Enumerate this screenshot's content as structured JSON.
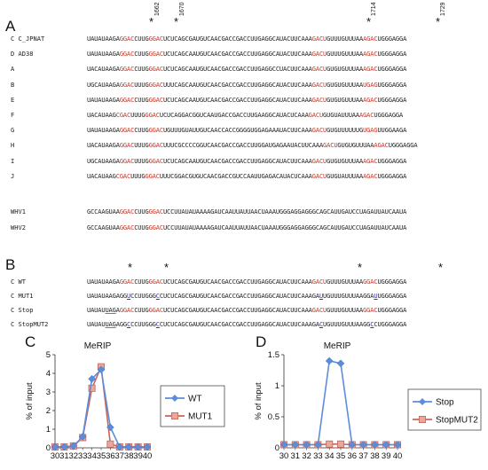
{
  "panelA": {
    "letter": "A",
    "positions": [
      "1662",
      "1670",
      "1714",
      "1729"
    ],
    "rows": [
      {
        "label": "C C_JPNAT",
        "parts": [
          [
            "UAUAUAAGA",
            ""
          ],
          [
            "GGAC",
            "red"
          ],
          [
            "CUUG",
            ""
          ],
          [
            "GGAC",
            "red"
          ],
          [
            "UCUCAGCGAUGUCAACGACCGACCUUGAGGCAUACUUCAAA",
            ""
          ],
          [
            "GACU",
            "red"
          ],
          [
            "GUUUGUUUAA",
            ""
          ],
          [
            "AGAC",
            "red"
          ],
          [
            "UGGGAGGA",
            ""
          ]
        ]
      },
      {
        "label": "D AD38",
        "parts": [
          [
            "UAUAUAAGA",
            ""
          ],
          [
            "GGAC",
            "red"
          ],
          [
            "CUUG",
            ""
          ],
          [
            "GGAC",
            "red"
          ],
          [
            "UCUCAGCAAUGUCAACGACCGACCUUGAGGCAUACUUCAAA",
            ""
          ],
          [
            "GACU",
            "red"
          ],
          [
            "GUUUGUUUAA",
            ""
          ],
          [
            "AGAC",
            "red"
          ],
          [
            "UGGGAGGA",
            ""
          ]
        ]
      },
      {
        "label": "A",
        "parts": [
          [
            "UACAUAAGA",
            ""
          ],
          [
            "GGAC",
            "red"
          ],
          [
            "CUUG",
            ""
          ],
          [
            "GGAC",
            "red"
          ],
          [
            "UCUCAGCAAUGUCAACGACCGACCUUGAGGCCUACUUCAAA",
            ""
          ],
          [
            "GACU",
            "red"
          ],
          [
            "GUGUGUUUAA",
            ""
          ],
          [
            "AGAC",
            "red"
          ],
          [
            "UGGGAGGA",
            ""
          ]
        ]
      },
      {
        "label": "B",
        "parts": [
          [
            "UGCAUAAGA",
            ""
          ],
          [
            "GGAC",
            "red"
          ],
          [
            "UUUG",
            ""
          ],
          [
            "GGAC",
            "red"
          ],
          [
            "UUUCAGCAAUGUCAACGACCGACCUUGAGGCAUACUUCAAA",
            ""
          ],
          [
            "GACU",
            "red"
          ],
          [
            "GUGUGUUUAA",
            ""
          ],
          [
            "UGAG",
            "red"
          ],
          [
            "UGGGAGGA",
            ""
          ]
        ]
      },
      {
        "label": "E",
        "parts": [
          [
            "UAUAUAAGA",
            ""
          ],
          [
            "GGAC",
            "red"
          ],
          [
            "CUUG",
            ""
          ],
          [
            "GGAC",
            "red"
          ],
          [
            "UCUCAGCAAUGUCAACGACCGACCUUGAGGCAUACUUCAAA",
            ""
          ],
          [
            "GACU",
            "red"
          ],
          [
            "GUGUGUUUAA",
            ""
          ],
          [
            "AGAC",
            "red"
          ],
          [
            "UGGGAGGA",
            ""
          ]
        ]
      },
      {
        "label": "F",
        "parts": [
          [
            "UACAUAAG",
            ""
          ],
          [
            "CGAC",
            "red"
          ],
          [
            "UUUG",
            ""
          ],
          [
            "GGAC",
            "red"
          ],
          [
            "UCUCAGGACGGUCAAUGACCGACCUUGAAGGCAUACUCAAA",
            ""
          ],
          [
            "GACU",
            "red"
          ],
          [
            "GUGUAUUUAA",
            ""
          ],
          [
            "AGAC",
            "red"
          ],
          [
            "UGGGAGGA",
            ""
          ]
        ]
      },
      {
        "label": "G",
        "parts": [
          [
            "UAUAUAAGA",
            ""
          ],
          [
            "GGAC",
            "red"
          ],
          [
            "CUUG",
            ""
          ],
          [
            "GGAC",
            "red"
          ],
          [
            "UGUUUGUAUUGUCAACCACCGGGGUGGAGAAAUACUUCAAA",
            ""
          ],
          [
            "GACU",
            "red"
          ],
          [
            "GUGUUUUUUG",
            ""
          ],
          [
            "UGAG",
            "red"
          ],
          [
            "UUGGAAGA",
            ""
          ]
        ]
      },
      {
        "label": "H",
        "parts": [
          [
            "UACAUAAGA",
            ""
          ],
          [
            "GGAC",
            "red"
          ],
          [
            "UUUG",
            ""
          ],
          [
            "GGAC",
            "red"
          ],
          [
            "UUUCGCCCCGGUCAACGACCGACCUUGGAUGAGAAUACUUCAAA",
            ""
          ],
          [
            "GACU",
            "red"
          ],
          [
            "GUGUGUUUAA",
            ""
          ],
          [
            "AGAC",
            "red"
          ],
          [
            "UGGGAGGA",
            ""
          ]
        ]
      },
      {
        "label": "I",
        "parts": [
          [
            "UGCAUAAGA",
            ""
          ],
          [
            "GGAC",
            "red"
          ],
          [
            "UUUG",
            ""
          ],
          [
            "GGAC",
            "red"
          ],
          [
            "UCUCAGCAAUGUCAACGACCGACCUUGAGGCAUACUUCAAA",
            ""
          ],
          [
            "GACU",
            "red"
          ],
          [
            "GUGUGUUUAA",
            ""
          ],
          [
            "AGAC",
            "red"
          ],
          [
            "UGGGAGGA",
            ""
          ]
        ]
      },
      {
        "label": "J",
        "parts": [
          [
            "UACAUAAG",
            ""
          ],
          [
            "CGAC",
            "red"
          ],
          [
            "UUUG",
            ""
          ],
          [
            "GGAC",
            "red"
          ],
          [
            "UUUCGGACGUGUCAACGACCGUCCAAUUGAGACAUACUCAAA",
            ""
          ],
          [
            "GACU",
            "red"
          ],
          [
            "GUGUAUUUAA",
            ""
          ],
          [
            "AGAC",
            "red"
          ],
          [
            "UGGGAGGA",
            ""
          ]
        ]
      }
    ],
    "whv": [
      {
        "label": "WHV1",
        "parts": [
          [
            "GCCAAGUAA",
            ""
          ],
          [
            "GGAC",
            "red"
          ],
          [
            "CUUG",
            ""
          ],
          [
            "GGAC",
            "red"
          ],
          [
            "UCCUUAUAUAAAAGAUCAAUUAUUAACUAAAUGGGAGGAGGGCAGCAUUGAUCCUAGAUUAUCAAUA",
            ""
          ]
        ]
      },
      {
        "label": "WHV2",
        "parts": [
          [
            "GCCAAGUAA",
            ""
          ],
          [
            "GGAC",
            "red"
          ],
          [
            "CUUG",
            ""
          ],
          [
            "GGAC",
            "red"
          ],
          [
            "UCCUUAUAUAAAAGAUCAAUUAUUAACUAAAUGGGAGGAGGGCAGCAUUGAUCCUAGAUUAUCAAUA",
            ""
          ]
        ]
      }
    ]
  },
  "panelB": {
    "letter": "B",
    "rows": [
      {
        "label": "C WT",
        "parts": [
          [
            "UAUAUAAGA",
            ""
          ],
          [
            "GGAC",
            "red"
          ],
          [
            "CUUG",
            ""
          ],
          [
            "GGAC",
            "red"
          ],
          [
            "UCUCAGCGAUGUCAACGACCGACCUUGAGGCAUACUUCAAA",
            ""
          ],
          [
            "GACU",
            "red"
          ],
          [
            "GUUUGUUUAA",
            ""
          ],
          [
            "GGAC",
            "red"
          ],
          [
            "UGGGAGGA",
            ""
          ]
        ]
      },
      {
        "label": "C MUT1",
        "parts": [
          [
            "UAUAUAAGA",
            ""
          ],
          [
            "GG",
            ""
          ],
          [
            "U",
            "blue"
          ],
          [
            "C",
            ""
          ],
          [
            "CUUG",
            ""
          ],
          [
            "GG",
            ""
          ],
          [
            "C",
            "blue"
          ],
          [
            "C",
            ""
          ],
          [
            "UCUCAGCGAUGUCAACGACCGACCUUGAGGCAUACUUCAAA",
            ""
          ],
          [
            "GA",
            ""
          ],
          [
            "U",
            "blue"
          ],
          [
            "U",
            ""
          ],
          [
            "GUUUGUUUAA",
            ""
          ],
          [
            "GGA",
            ""
          ],
          [
            "U",
            "blue"
          ],
          [
            "UGGGAGGA",
            ""
          ]
        ]
      },
      {
        "label": "C Stop",
        "parts": [
          [
            "UAUAU",
            ""
          ],
          [
            "UAG",
            "green"
          ],
          [
            "A",
            ""
          ],
          [
            "GGAC",
            "red"
          ],
          [
            "CUUG",
            ""
          ],
          [
            "GGAC",
            "red"
          ],
          [
            "UCUCAGCGAUGUCAACGACCGACCUUGAGGCAUACUUCAAA",
            ""
          ],
          [
            "GACU",
            "red"
          ],
          [
            "GUUUGUUUAA",
            ""
          ],
          [
            "GGAC",
            "red"
          ],
          [
            "UGGGAGGA",
            ""
          ]
        ]
      },
      {
        "label": "C StopMUT2",
        "parts": [
          [
            "UAUAU",
            ""
          ],
          [
            "UAG",
            "green"
          ],
          [
            "A",
            ""
          ],
          [
            "GG",
            ""
          ],
          [
            "C",
            "blue"
          ],
          [
            "C",
            ""
          ],
          [
            "CUUG",
            ""
          ],
          [
            "GG",
            ""
          ],
          [
            "C",
            "blue"
          ],
          [
            "C",
            ""
          ],
          [
            "UCUCAGCGAUGUCAACGACCGACCUUGAGGCAUACUUCAAA",
            ""
          ],
          [
            "GA",
            ""
          ],
          [
            "C",
            "blue"
          ],
          [
            "U",
            ""
          ],
          [
            "GUUUGUUUAA",
            ""
          ],
          [
            "GG",
            ""
          ],
          [
            "C",
            "blue"
          ],
          [
            "C",
            ""
          ],
          [
            "UGGGAGGA",
            ""
          ]
        ]
      }
    ]
  },
  "panelC": {
    "letter": "C",
    "chart_data": {
      "type": "line",
      "title": "MeRIP",
      "ylabel": "% of input",
      "xlabel": "",
      "x": [
        30,
        31,
        32,
        33,
        34,
        35,
        36,
        37,
        38,
        39,
        40
      ],
      "tick_labels": [
        "30",
        "31",
        "32",
        "33",
        "34",
        "35",
        "36",
        "37",
        "38",
        "39",
        "40"
      ],
      "ylim": [
        0,
        5
      ],
      "yticks": [
        "0",
        "1",
        "2",
        "3",
        "4",
        "5"
      ],
      "legend_position": "right",
      "series": [
        {
          "name": "WT",
          "color": "#5b8ddb",
          "marker": "diamond",
          "values": [
            0.05,
            0.05,
            0.1,
            0.6,
            3.7,
            4.2,
            1.1,
            0.05,
            0.05,
            0.05,
            0.05
          ]
        },
        {
          "name": "MUT1",
          "color": "#c9655a",
          "marker": "square",
          "values": [
            0.05,
            0.05,
            0.1,
            0.55,
            3.2,
            4.35,
            0.2,
            0.05,
            0.05,
            0.05,
            0.05
          ]
        }
      ]
    }
  },
  "panelD": {
    "letter": "D",
    "chart_data": {
      "type": "line",
      "title": "MeRIP",
      "ylabel": "% of input",
      "xlabel": "",
      "x": [
        30,
        31,
        32,
        33,
        34,
        35,
        36,
        37,
        38,
        39,
        40
      ],
      "tick_labels": [
        "30",
        "31",
        "32",
        "33",
        "34",
        "35",
        "36",
        "37",
        "38",
        "39",
        "40"
      ],
      "ylim": [
        0,
        1.5
      ],
      "yticks": [
        "0",
        "0.5",
        "1",
        "1.5"
      ],
      "legend_position": "right",
      "series": [
        {
          "name": "Stop",
          "color": "#5b8ddb",
          "marker": "diamond",
          "values": [
            0.05,
            0.05,
            0.05,
            0.05,
            1.4,
            1.36,
            0.05,
            0.05,
            0.05,
            0.05,
            0.05
          ]
        },
        {
          "name": "StopMUT2",
          "color": "#c9655a",
          "marker": "square",
          "values": [
            0.05,
            0.05,
            0.05,
            0.05,
            0.06,
            0.06,
            0.05,
            0.05,
            0.05,
            0.05,
            0.05
          ]
        }
      ]
    }
  }
}
